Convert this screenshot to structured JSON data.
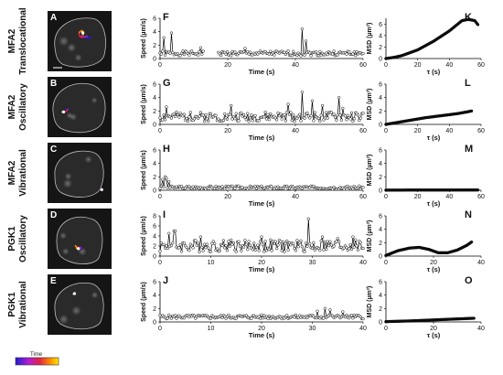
{
  "rows": [
    {
      "row_label": [
        "MFA2",
        "Translocational"
      ],
      "image_letter": "A",
      "speed_letter": "F",
      "msd_letter": "K"
    },
    {
      "row_label": [
        "MFA2",
        "Oscillatory"
      ],
      "image_letter": "B",
      "speed_letter": "G",
      "msd_letter": "L"
    },
    {
      "row_label": [
        "MFA2",
        "Vibrational"
      ],
      "image_letter": "C",
      "speed_letter": "H",
      "msd_letter": "M"
    },
    {
      "row_label": [
        "PGK1",
        "Oscillatory"
      ],
      "image_letter": "D",
      "speed_letter": "I",
      "msd_letter": "N"
    },
    {
      "row_label": [
        "PGK1",
        "Vibrational"
      ],
      "image_letter": "E",
      "speed_letter": "J",
      "msd_letter": "O"
    }
  ],
  "colorbar_label": "Time",
  "colors": {
    "trace": "#000000",
    "cell_bg": "#151515",
    "cell_outline": "#bdbdbd",
    "spot_track": [
      "#1e1ecc",
      "#b01fd6",
      "#e0204a",
      "#ff8c00",
      "#ffe500"
    ]
  },
  "chart_data": [
    {
      "type": "line",
      "panel": "F",
      "ylabel": "Speed (µm/s)",
      "xlabel": "Time (s)",
      "xlim": [
        0,
        60
      ],
      "ylim": [
        0,
        6
      ],
      "xticks": [
        0,
        20,
        40,
        60
      ],
      "yticks": [
        0,
        2,
        4,
        6
      ],
      "markers": "open-circle",
      "baseline": 0.7,
      "noise": 0.35,
      "spikes": [
        [
          1.2,
          3.1
        ],
        [
          3.5,
          3.8
        ],
        [
          12,
          1.6
        ],
        [
          25,
          1.5
        ],
        [
          42,
          4.4
        ],
        [
          43,
          2.6
        ]
      ],
      "gap": [
        13,
        17
      ],
      "seed": 1
    },
    {
      "type": "line",
      "panel": "G",
      "ylabel": "Speed (µm/s)",
      "xlabel": "Time (s)",
      "xlim": [
        0,
        60
      ],
      "ylim": [
        0,
        6
      ],
      "xticks": [
        0,
        20,
        40,
        60
      ],
      "yticks": [
        0,
        2,
        4,
        6
      ],
      "markers": "open-circle",
      "baseline": 1.0,
      "noise": 0.7,
      "spikes": [
        [
          2,
          2.6
        ],
        [
          9,
          1.8
        ],
        [
          21,
          2.8
        ],
        [
          38,
          3.0
        ],
        [
          42,
          4.8
        ],
        [
          45,
          3.5
        ],
        [
          48,
          2.8
        ],
        [
          53,
          4.0
        ],
        [
          54,
          2.4
        ]
      ],
      "gap": null,
      "seed": 2
    },
    {
      "type": "line",
      "panel": "H",
      "ylabel": "Speed (µm/s)",
      "xlabel": "Time (s)",
      "xlim": [
        0,
        60
      ],
      "ylim": [
        0,
        6
      ],
      "xticks": [
        0,
        20,
        40,
        60
      ],
      "yticks": [
        0,
        2,
        4,
        6
      ],
      "markers": "open-circle",
      "baseline": 0.35,
      "noise": 0.25,
      "spikes": [
        [
          0.8,
          1.6
        ],
        [
          1.4,
          2.0
        ],
        [
          2.0,
          1.8
        ],
        [
          2.5,
          1.3
        ]
      ],
      "gap": null,
      "seed": 3
    },
    {
      "type": "line",
      "panel": "I",
      "ylabel": "Speed (µm/s)",
      "xlabel": "Time (s)",
      "xlim": [
        0,
        40
      ],
      "ylim": [
        0,
        8
      ],
      "xticks": [
        0,
        10,
        20,
        30,
        40
      ],
      "yticks": [
        0,
        2,
        4,
        6,
        8
      ],
      "markers": "open-circle",
      "baseline": 1.8,
      "noise": 1.2,
      "spikes": [
        [
          1.7,
          4.5
        ],
        [
          2.9,
          5.0
        ],
        [
          8,
          3.8
        ],
        [
          14,
          3.2
        ],
        [
          20,
          3.8
        ],
        [
          29.3,
          7.4
        ],
        [
          32,
          3.8
        ],
        [
          35,
          3.5
        ],
        [
          38,
          3.8
        ]
      ],
      "gap": null,
      "seed": 4
    },
    {
      "type": "line",
      "panel": "J",
      "ylabel": "Speed (µm/s)",
      "xlabel": "Time (s)",
      "xlim": [
        0,
        40
      ],
      "ylim": [
        0,
        6
      ],
      "xticks": [
        0,
        10,
        20,
        30,
        40
      ],
      "yticks": [
        0,
        2,
        4,
        6
      ],
      "markers": "open-circle",
      "baseline": 0.7,
      "noise": 0.3,
      "spikes": [
        [
          31,
          1.6
        ],
        [
          32.5,
          2.0
        ],
        [
          33.5,
          1.8
        ],
        [
          36,
          1.5
        ]
      ],
      "gap": null,
      "seed": 5
    },
    {
      "type": "scatter",
      "panel": "K",
      "ylabel": "MSD (µm²)",
      "xlabel": "τ (s)",
      "xlim": [
        0,
        60
      ],
      "ylim": [
        0,
        7
      ],
      "xticks": [
        0,
        20,
        40,
        60
      ],
      "yticks": [
        0,
        2,
        4,
        6
      ],
      "curve": [
        [
          0,
          0
        ],
        [
          5,
          0.2
        ],
        [
          10,
          0.5
        ],
        [
          20,
          1.5
        ],
        [
          30,
          3.0
        ],
        [
          40,
          4.8
        ],
        [
          48,
          6.6
        ],
        [
          52,
          6.8
        ],
        [
          56,
          6.6
        ],
        [
          58,
          5.9
        ]
      ]
    },
    {
      "type": "scatter",
      "panel": "L",
      "ylabel": "MSD (µm²)",
      "xlabel": "τ (s)",
      "xlim": [
        0,
        60
      ],
      "ylim": [
        0,
        6
      ],
      "xticks": [
        0,
        20,
        40,
        60
      ],
      "yticks": [
        0,
        2,
        4,
        6
      ],
      "curve": [
        [
          0,
          0
        ],
        [
          5,
          0.2
        ],
        [
          15,
          0.6
        ],
        [
          25,
          1.0
        ],
        [
          35,
          1.3
        ],
        [
          45,
          1.6
        ],
        [
          52,
          1.9
        ],
        [
          54,
          2.0
        ]
      ]
    },
    {
      "type": "scatter",
      "panel": "M",
      "ylabel": "MSD (µm²)",
      "xlabel": "τ (s)",
      "xlim": [
        0,
        60
      ],
      "ylim": [
        0,
        6
      ],
      "xticks": [
        0,
        20,
        40,
        60
      ],
      "yticks": [
        0,
        2,
        4,
        6
      ],
      "curve": [
        [
          0,
          0.02
        ],
        [
          20,
          0.03
        ],
        [
          40,
          0.03
        ],
        [
          58,
          0.04
        ]
      ]
    },
    {
      "type": "scatter",
      "panel": "N",
      "ylabel": "MSD (µm²)",
      "xlabel": "τ (s)",
      "xlim": [
        0,
        40
      ],
      "ylim": [
        0,
        6
      ],
      "xticks": [
        0,
        20,
        40
      ],
      "yticks": [
        0,
        2,
        4,
        6
      ],
      "curve": [
        [
          0,
          0.1
        ],
        [
          5,
          0.8
        ],
        [
          10,
          1.2
        ],
        [
          14,
          1.3
        ],
        [
          18,
          1.0
        ],
        [
          22,
          0.5
        ],
        [
          26,
          0.5
        ],
        [
          30,
          0.9
        ],
        [
          34,
          1.6
        ],
        [
          36,
          2.1
        ]
      ]
    },
    {
      "type": "scatter",
      "panel": "O",
      "ylabel": "MSD (µm²)",
      "xlabel": "τ (s)",
      "xlim": [
        0,
        40
      ],
      "ylim": [
        0,
        6
      ],
      "xticks": [
        0,
        20,
        40
      ],
      "yticks": [
        0,
        2,
        4,
        6
      ],
      "curve": [
        [
          0,
          0.05
        ],
        [
          10,
          0.15
        ],
        [
          20,
          0.3
        ],
        [
          30,
          0.45
        ],
        [
          37,
          0.55
        ]
      ]
    }
  ]
}
